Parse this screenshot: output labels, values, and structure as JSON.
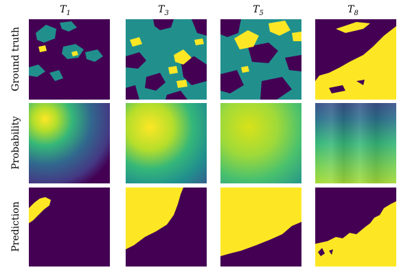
{
  "columns": [
    {
      "base": "T",
      "sub": "1"
    },
    {
      "base": "T",
      "sub": "3"
    },
    {
      "base": "T",
      "sub": "5"
    },
    {
      "base": "T",
      "sub": "8"
    }
  ],
  "rows": [
    "Ground truth",
    "Probability",
    "Prediction"
  ]
}
